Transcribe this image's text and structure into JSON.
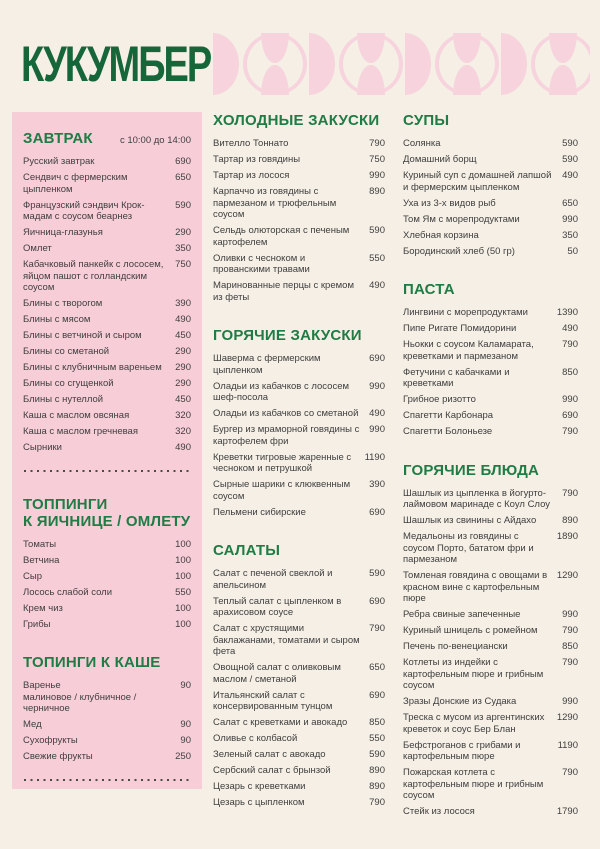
{
  "brand": {
    "logo_text": "КУКУМБЕР"
  },
  "colors": {
    "background": "#f5efe5",
    "panel_pink": "#f7cdd8",
    "pattern_pink": "#f7d3dd",
    "logo_green": "#17663a",
    "heading_green": "#1e7c44",
    "text": "#3f3f3f"
  },
  "header": {
    "pattern_icon": "geometric-petal-pattern"
  },
  "menu": {
    "columns": [
      {
        "id": "left",
        "sections": [
          {
            "title": "ЗАВТРАК",
            "subtitle": "с 10:00 до 14:00",
            "divider_after": true,
            "items": [
              {
                "name": "Русский завтрак",
                "price": "690"
              },
              {
                "name": "Сендвич с фермерским цыпленком",
                "price": "650"
              },
              {
                "name": "Французский сэндвич Крок-мадам с соусом беарнез",
                "price": "590"
              },
              {
                "name": "Яичница-глазунья",
                "price": "290"
              },
              {
                "name": "Омлет",
                "price": "350"
              },
              {
                "name": "Кабачковый панкейк с лососем, яйцом пашот с голландским соусом",
                "price": "750"
              },
              {
                "name": "Блины с творогом",
                "price": "390"
              },
              {
                "name": "Блины с мясом",
                "price": "490"
              },
              {
                "name": "Блины с ветчиной и сыром",
                "price": "450"
              },
              {
                "name": "Блины со сметаной",
                "price": "290"
              },
              {
                "name": "Блины с клубничным вареньем",
                "price": "290"
              },
              {
                "name": "Блины со сгущенкой",
                "price": "290"
              },
              {
                "name": "Блины с нутеллой",
                "price": "450"
              },
              {
                "name": "Каша с маслом овсяная",
                "price": "320"
              },
              {
                "name": "Каша с маслом гречневая",
                "price": "320"
              },
              {
                "name": "Сырники",
                "price": "490"
              }
            ]
          },
          {
            "title": "ТОППИНГИ\nК ЯИЧНИЦЕ / ОМЛЕТУ",
            "divider_after": false,
            "items": [
              {
                "name": "Томаты",
                "price": "100"
              },
              {
                "name": "Ветчина",
                "price": "100"
              },
              {
                "name": "Сыр",
                "price": "100"
              },
              {
                "name": "Лосось слабой соли",
                "price": "550"
              },
              {
                "name": "Крем чиз",
                "price": "100"
              },
              {
                "name": "Грибы",
                "price": "100"
              }
            ]
          },
          {
            "title": "ТОПИНГИ К КАШЕ",
            "divider_after": true,
            "items": [
              {
                "name": "Варенье",
                "note": "малиновое / клубничное / черничное",
                "price": "90"
              },
              {
                "name": "Мед",
                "price": "90"
              },
              {
                "name": "Сухофрукты",
                "price": "90"
              },
              {
                "name": "Свежие фрукты",
                "price": "250"
              }
            ]
          }
        ]
      },
      {
        "id": "middle",
        "sections": [
          {
            "title": "ХОЛОДНЫЕ ЗАКУСКИ",
            "divider_after": false,
            "items": [
              {
                "name": "Вителло Тоннато",
                "price": "790"
              },
              {
                "name": "Тартар из говядины",
                "price": "750"
              },
              {
                "name": "Тартар из лосося",
                "price": "990"
              },
              {
                "name": "Карпаччо из говядины с пармезаном и трюфельным соусом",
                "price": "890"
              },
              {
                "name": "Сельдь олюторская с печеным картофелем",
                "price": "590"
              },
              {
                "name": "Оливки с чесноком и прованскими травами",
                "price": "550"
              },
              {
                "name": "Маринованные перцы с кремом из феты",
                "price": "490"
              }
            ]
          },
          {
            "title": "ГОРЯЧИЕ ЗАКУСКИ",
            "divider_after": false,
            "items": [
              {
                "name": "Шаверма с фермерским цыпленком",
                "price": "690"
              },
              {
                "name": "Оладьи из кабачков с лососем шеф-посола",
                "price": "990"
              },
              {
                "name": "Оладьи из кабачков со сметаной",
                "price": "490"
              },
              {
                "name": "Бургер из мраморной говядины с картофелем фри",
                "price": "990"
              },
              {
                "name": "Креветки тигровые жаренные с чесноком и петрушкой",
                "price": "1190"
              },
              {
                "name": "Сырные шарики с клюквенным соусом",
                "price": "390"
              },
              {
                "name": "Пельмени сибирские",
                "price": "690"
              }
            ]
          },
          {
            "title": "САЛАТЫ",
            "divider_after": false,
            "items": [
              {
                "name": "Салат с печеной свеклой и апельсином",
                "price": "590"
              },
              {
                "name": "Теплый салат с цыпленком в арахисовом соусе",
                "price": "690"
              },
              {
                "name": "Салат с хрустящими баклажанами, томатами и сыром фета",
                "price": "790"
              },
              {
                "name": "Овощной салат с оливковым маслом / сметаной",
                "price": "650"
              },
              {
                "name": "Итальянский салат с консервированным тунцом",
                "price": "690"
              },
              {
                "name": "Салат с креветками и авокадо",
                "price": "850"
              },
              {
                "name": "Оливье с колбасой",
                "price": "550"
              },
              {
                "name": "Зеленый салат с авокадо",
                "price": "590"
              },
              {
                "name": "Сербский салат с брынзой",
                "price": "890"
              },
              {
                "name": "Цезарь с креветками",
                "price": "890"
              },
              {
                "name": "Цезарь с цыпленком",
                "price": "790"
              }
            ]
          }
        ]
      },
      {
        "id": "right",
        "sections": [
          {
            "title": "СУПЫ",
            "divider_after": false,
            "items": [
              {
                "name": "Солянка",
                "price": "590"
              },
              {
                "name": "Домашний борщ",
                "price": "590"
              },
              {
                "name": "Куриный суп с домашней лапшой и фермерским цыпленком",
                "price": "490"
              },
              {
                "name": "Уха из 3-х видов рыб",
                "price": "650"
              },
              {
                "name": "Том Ям с морепродуктами",
                "price": "990"
              },
              {
                "name": "Хлебная корзина",
                "price": "350"
              },
              {
                "name": "Бородинский хлеб (50 гр)",
                "price": "50"
              }
            ]
          },
          {
            "title": "ПАСТА",
            "divider_after": false,
            "items": [
              {
                "name": "Лингвини с морепродуктами",
                "price": "1390"
              },
              {
                "name": "Пипе Ригате Помидорини",
                "price": "490"
              },
              {
                "name": "Ньокки с соусом Каламарата, креветками и пармезаном",
                "price": "790"
              },
              {
                "name": "Фетучини с кабачками и креветками",
                "price": "850"
              },
              {
                "name": "Грибное ризотто",
                "price": "990"
              },
              {
                "name": "Спагетти Карбонара",
                "price": "690"
              },
              {
                "name": "Спагетти Болоньезе",
                "price": "790"
              }
            ]
          },
          {
            "title": "ГОРЯЧИЕ БЛЮДА",
            "divider_after": false,
            "items": [
              {
                "name": "Шашлык из цыпленка в йогурто-лаймовом маринаде с Коул Слоу",
                "price": "790"
              },
              {
                "name": "Шашлык из свинины с Айдахо",
                "price": "890"
              },
              {
                "name": "Медальоны из говядины с соусом Порто, бататом фри и пармезаном",
                "price": "1890"
              },
              {
                "name": "Томленая говядина с овощами в красном вине с картофельным пюре",
                "price": "1290"
              },
              {
                "name": "Ребра свиные запеченные",
                "price": "990"
              },
              {
                "name": "Куриный шницель с ромейном",
                "price": "790"
              },
              {
                "name": "Печень по-венециански",
                "price": "850"
              },
              {
                "name": "Котлеты из индейки с картофельным пюре и грибным соусом",
                "price": "790"
              },
              {
                "name": "Зразы Донские из Судака",
                "price": "990"
              },
              {
                "name": "Треска с мусом из аргентинских креветок и соус Бер Блан",
                "price": "1290"
              },
              {
                "name": "Бефстроганов с грибами и картофельным пюре",
                "price": "1190"
              },
              {
                "name": "Пожарская котлета с картофельным пюре и грибным соусом",
                "price": "790"
              },
              {
                "name": "Стейк из лосося",
                "price": "1790"
              }
            ]
          }
        ]
      }
    ]
  }
}
